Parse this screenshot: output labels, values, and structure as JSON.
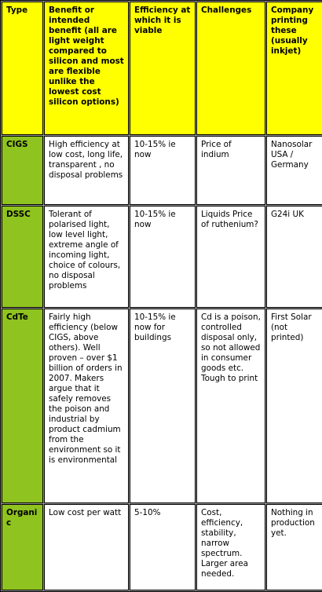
{
  "table": {
    "header": [
      "Type",
      "Benefit or intended benefit (all are light weight compared to silicon and most are flexible unlike the lowest cost silicon options)",
      "Efficiency at which it is viable",
      "Challenges",
      "Company printing these (usually inkjet)"
    ],
    "rows": [
      [
        "CIGS",
        "High efficiency at low cost, long life, transparent , no disposal problems",
        "10-15% ie now",
        "Price of indium",
        "Nanosolar USA / Germany"
      ],
      [
        "DSSC",
        "Tolerant of polarised light, low level light, extreme angle of incoming light, choice of colours, no disposal problems",
        "10-15% ie now",
        "Liquids Price of ruthenium?",
        "G24i UK"
      ],
      [
        "CdTe",
        "Fairly high efficiency (below CIGS, above others). Well proven – over $1 billion of orders in 2007. Makers argue that it safely removes the poison and industrial by product cadmium from the environment so it is environmental",
        "10-15% ie now for buildings",
        "Cd is a poison, controlled disposal only, so not allowed in consumer goods etc. Tough to print",
        "First Solar (not printed)"
      ],
      [
        "Organic",
        "Low cost per watt",
        "5-10%",
        "Cost, efficiency, stability, narrow spectrum. Larger area needed.",
        "Nothing in production yet."
      ]
    ]
  }
}
